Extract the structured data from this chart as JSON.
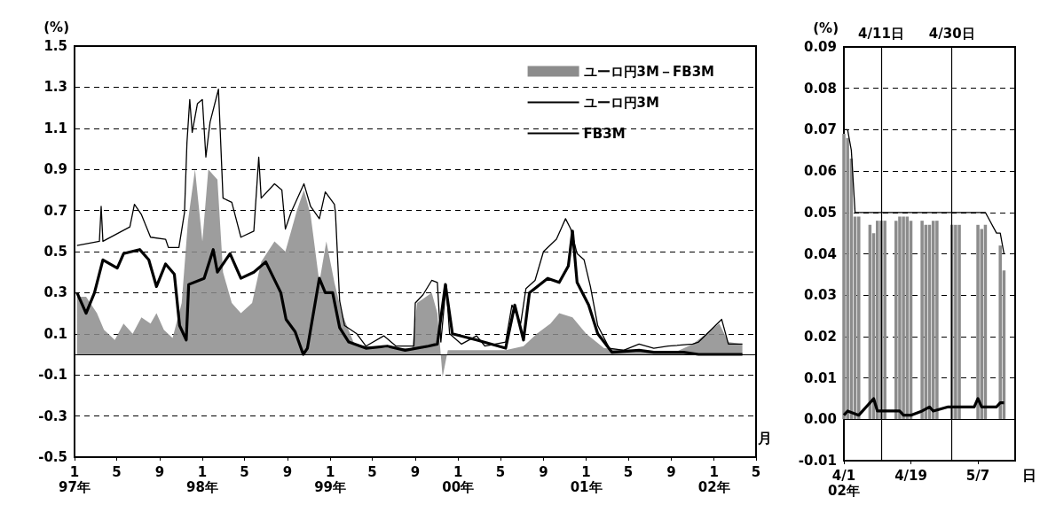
{
  "chart_data": [
    {
      "type": "line",
      "ylabel": "(%)",
      "annotations": [
        "月"
      ],
      "legend": "top right",
      "grid": "y",
      "xlim": [
        "1997-01-01",
        "2002-05-01"
      ],
      "xticks": [
        {
          "value": "1997-01-01",
          "label": "1\n97年"
        },
        {
          "value": "1997-05-01",
          "label": "5"
        },
        {
          "value": "1997-09-01",
          "label": "9"
        },
        {
          "value": "1998-01-01",
          "label": "1\n98年"
        },
        {
          "value": "1998-05-01",
          "label": "5"
        },
        {
          "value": "1998-09-01",
          "label": "9"
        },
        {
          "value": "1999-01-01",
          "label": "1\n99年"
        },
        {
          "value": "1999-05-01",
          "label": "5"
        },
        {
          "value": "1999-09-01",
          "label": "9"
        },
        {
          "value": "2000-01-01",
          "label": "1\n00年"
        },
        {
          "value": "2000-05-01",
          "label": "5"
        },
        {
          "value": "2000-09-01",
          "label": "9"
        },
        {
          "value": "2001-01-01",
          "label": "1\n01年"
        },
        {
          "value": "2001-05-01",
          "label": "5"
        },
        {
          "value": "2001-09-01",
          "label": "9"
        },
        {
          "value": "2002-01-01",
          "label": "1\n02年"
        },
        {
          "value": "2002-05-01",
          "label": "5"
        }
      ],
      "ylim": [
        -0.5,
        1.5
      ],
      "yticks": [
        -0.5,
        -0.3,
        -0.1,
        0.1,
        0.3,
        0.5,
        0.7,
        0.9,
        1.1,
        1.3,
        1.5
      ],
      "ref_lines": [
        {
          "axis": "y",
          "value": 0
        }
      ],
      "series": [
        {
          "name": "ユーロ円3M－FB3M",
          "type": "area",
          "color": "#8c8c8c",
          "x": [
            "1997-01-08",
            "1997-02-03",
            "1997-03-06",
            "1997-03-26",
            "1997-04-26",
            "1997-05-21",
            "1997-06-16",
            "1997-07-11",
            "1997-08-06",
            "1997-08-23",
            "1997-09-13",
            "1997-10-08",
            "1997-11-03",
            "1997-11-21",
            "1997-12-11",
            "1998-01-01",
            "1998-01-18",
            "1998-02-13",
            "1998-03-01",
            "1998-03-26",
            "1998-04-21",
            "1998-05-23",
            "1998-06-18",
            "1998-07-26",
            "1998-08-26",
            "1998-09-28",
            "1998-10-18",
            "1998-11-06",
            "1998-12-01",
            "1998-12-21",
            "1999-01-13",
            "1999-02-03",
            "1999-03-11",
            "1999-05-26",
            "1999-08-23",
            "1999-09-06",
            "1999-10-18",
            "1999-11-03",
            "1999-11-18",
            "1999-12-03",
            "2000-02-06",
            "2000-05-16",
            "2000-07-06",
            "2000-08-13",
            "2000-09-21",
            "2000-10-16",
            "2000-11-23",
            "2001-01-01",
            "2001-02-21",
            "2001-09-11",
            "2001-11-01",
            "2002-01-16",
            "2002-02-11",
            "2002-03-23"
          ],
          "values": [
            0.28,
            0.28,
            0.2,
            0.12,
            0.07,
            0.15,
            0.1,
            0.18,
            0.15,
            0.2,
            0.12,
            0.08,
            0.25,
            0.65,
            0.9,
            0.55,
            0.9,
            0.85,
            0.4,
            0.25,
            0.2,
            0.25,
            0.45,
            0.55,
            0.5,
            0.7,
            0.8,
            0.68,
            0.35,
            0.55,
            0.35,
            0.2,
            0.05,
            0.03,
            0.03,
            0.25,
            0.3,
            0.2,
            -0.11,
            0.02,
            0.02,
            0.02,
            0.04,
            0.1,
            0.15,
            0.2,
            0.18,
            0.1,
            0.03,
            0.01,
            0.05,
            0.15,
            0.06,
            0.05
          ]
        },
        {
          "name": "ユーロ円3M",
          "color": "#000000",
          "x": [
            "1997-01-08",
            "1997-03-13",
            "1997-03-18",
            "1997-03-23",
            "1997-06-08",
            "1997-06-21",
            "1997-07-11",
            "1997-08-06",
            "1997-09-18",
            "1997-09-26",
            "1997-10-26",
            "1997-11-11",
            "1997-11-18",
            "1997-11-26",
            "1997-12-03",
            "1997-12-18",
            "1998-01-01",
            "1998-01-11",
            "1998-01-23",
            "1998-02-16",
            "1998-03-01",
            "1998-03-26",
            "1998-04-21",
            "1998-05-28",
            "1998-06-11",
            "1998-06-18",
            "1998-07-26",
            "1998-08-16",
            "1998-08-26",
            "1998-09-11",
            "1998-10-18",
            "1998-11-06",
            "1998-12-01",
            "1998-12-18",
            "1999-01-13",
            "1999-01-16",
            "1999-01-28",
            "1999-02-11",
            "1999-03-18",
            "1999-04-13",
            "1999-06-03",
            "1999-07-08",
            "1999-08-28",
            "1999-09-01",
            "1999-09-23",
            "1999-10-18",
            "1999-11-03",
            "1999-11-13",
            "1999-11-28",
            "1999-12-08",
            "2000-01-11",
            "2000-02-23",
            "2000-03-18",
            "2000-05-16",
            "2000-06-03",
            "2000-06-28",
            "2000-07-13",
            "2000-08-08",
            "2000-09-01",
            "2000-10-08",
            "2000-11-03",
            "2000-11-18",
            "2000-12-06",
            "2000-12-26",
            "2001-01-13",
            "2001-02-03",
            "2001-03-08",
            "2001-04-18",
            "2001-06-01",
            "2001-07-13",
            "2001-08-23",
            "2001-11-01",
            "2001-11-18",
            "2002-01-23",
            "2002-02-11",
            "2002-03-23"
          ],
          "values": [
            0.53,
            0.55,
            0.72,
            0.55,
            0.62,
            0.73,
            0.68,
            0.57,
            0.56,
            0.52,
            0.52,
            0.69,
            1.03,
            1.24,
            1.08,
            1.22,
            1.24,
            0.96,
            1.13,
            1.29,
            0.76,
            0.74,
            0.57,
            0.6,
            0.96,
            0.76,
            0.83,
            0.8,
            0.61,
            0.69,
            0.83,
            0.72,
            0.66,
            0.79,
            0.73,
            0.69,
            0.26,
            0.14,
            0.1,
            0.04,
            0.09,
            0.04,
            0.04,
            0.25,
            0.29,
            0.36,
            0.35,
            0.06,
            0.34,
            0.1,
            0.05,
            0.09,
            0.04,
            0.06,
            0.24,
            0.15,
            0.32,
            0.36,
            0.5,
            0.56,
            0.66,
            0.61,
            0.49,
            0.46,
            0.33,
            0.14,
            0.03,
            0.02,
            0.05,
            0.03,
            0.04,
            0.05,
            0.06,
            0.17,
            0.05,
            0.05
          ]
        },
        {
          "name": "FB3M",
          "color": "#000000",
          "x": [
            "1997-01-08",
            "1997-02-03",
            "1997-02-27",
            "1997-03-23",
            "1997-05-03",
            "1997-05-21",
            "1997-07-06",
            "1997-08-01",
            "1997-08-23",
            "1997-09-18",
            "1997-10-13",
            "1997-10-28",
            "1997-11-16",
            "1997-11-23",
            "1998-01-06",
            "1998-02-01",
            "1998-02-13",
            "1998-03-21",
            "1998-04-21",
            "1998-05-28",
            "1998-07-01",
            "1998-08-13",
            "1998-08-28",
            "1998-09-23",
            "1998-10-16",
            "1998-10-28",
            "1998-12-01",
            "1998-12-18",
            "1999-01-08",
            "1999-01-28",
            "1999-02-23",
            "1999-04-13",
            "1999-06-13",
            "1999-08-03",
            "1999-10-08",
            "1999-11-03",
            "1999-11-26",
            "1999-12-16",
            "2000-02-23",
            "2000-05-16",
            "2000-06-11",
            "2000-07-06",
            "2000-07-23",
            "2000-09-13",
            "2000-10-16",
            "2000-11-11",
            "2000-11-23",
            "2000-12-06",
            "2001-01-08",
            "2001-02-03",
            "2001-03-16",
            "2001-06-01",
            "2001-07-13",
            "2001-10-06",
            "2001-11-18",
            "2002-03-23"
          ],
          "values": [
            0.3,
            0.2,
            0.3,
            0.46,
            0.42,
            0.49,
            0.51,
            0.46,
            0.33,
            0.44,
            0.39,
            0.14,
            0.07,
            0.34,
            0.37,
            0.51,
            0.4,
            0.49,
            0.37,
            0.4,
            0.45,
            0.3,
            0.17,
            0.11,
            0.0,
            0.03,
            0.37,
            0.3,
            0.3,
            0.13,
            0.06,
            0.03,
            0.04,
            0.02,
            0.04,
            0.05,
            0.34,
            0.1,
            0.07,
            0.03,
            0.24,
            0.07,
            0.3,
            0.37,
            0.35,
            0.43,
            0.6,
            0.35,
            0.24,
            0.1,
            0.01,
            0.02,
            0.01,
            0.01,
            0.0,
            0.0
          ]
        }
      ]
    },
    {
      "type": "bar",
      "ylabel": "(%)",
      "annotations": [
        "日"
      ],
      "grid": "y",
      "xlim": [
        "2002-04-01",
        "2002-05-17"
      ],
      "xticks": [
        {
          "value": "2002-04-01",
          "label": "4/1\n02年"
        },
        {
          "value": "2002-04-19",
          "label": "4/19"
        },
        {
          "value": "2002-05-07",
          "label": "5/7"
        }
      ],
      "ylim": [
        -0.01,
        0.09
      ],
      "yticks": [
        -0.01,
        {
          "value": 0,
          "label": "0.00"
        },
        0.01,
        0.02,
        0.03,
        0.04,
        0.05,
        0.06,
        0.07,
        0.08,
        0.09
      ],
      "ref_lines": [
        {
          "axis": "y",
          "value": 0
        },
        {
          "axis": "x",
          "value": "2002-04-11",
          "label": "4/11日"
        },
        {
          "axis": "x",
          "value": "2002-04-30",
          "label": "4/30日"
        }
      ],
      "series": [
        {
          "color": "#8c8c8c",
          "x": [
            "2002-04-01",
            "2002-04-02",
            "2002-04-03",
            "2002-04-04",
            "2002-04-05",
            "2002-04-08",
            "2002-04-09",
            "2002-04-10",
            "2002-04-11",
            "2002-04-12",
            "2002-04-15",
            "2002-04-16",
            "2002-04-17",
            "2002-04-18",
            "2002-04-19",
            "2002-04-22",
            "2002-04-23",
            "2002-04-24",
            "2002-04-25",
            "2002-04-26",
            "2002-04-30",
            "2002-05-01",
            "2002-05-02",
            "2002-05-07",
            "2002-05-08",
            "2002-05-09",
            "2002-05-13",
            "2002-05-14"
          ],
          "values": [
            0.069,
            0.068,
            0.063,
            0.049,
            0.049,
            0.047,
            0.045,
            0.048,
            0.048,
            0.048,
            0.048,
            0.049,
            0.049,
            0.049,
            0.048,
            0.048,
            0.047,
            0.047,
            0.048,
            0.048,
            0.047,
            0.047,
            0.047,
            0.047,
            0.046,
            0.047,
            0.042,
            0.036
          ]
        },
        {
          "type": "line",
          "color": "#000000",
          "x": [
            "2002-04-01",
            "2002-04-02",
            "2002-04-03",
            "2002-04-04",
            "2002-05-09",
            "2002-05-12",
            "2002-05-13",
            "2002-05-14"
          ],
          "values": [
            0.07,
            0.07,
            0.065,
            0.05,
            0.05,
            0.045,
            0.045,
            0.04
          ]
        },
        {
          "type": "line",
          "color": "#000000",
          "x": [
            "2002-04-01",
            "2002-04-02",
            "2002-04-05",
            "2002-04-09",
            "2002-04-10",
            "2002-04-16",
            "2002-04-17",
            "2002-04-19",
            "2002-04-22",
            "2002-04-24",
            "2002-04-25",
            "2002-04-29",
            "2002-05-06",
            "2002-05-07",
            "2002-05-08",
            "2002-05-12",
            "2002-05-13",
            "2002-05-14"
          ],
          "values": [
            0.001,
            0.002,
            0.001,
            0.005,
            0.002,
            0.002,
            0.001,
            0.001,
            0.002,
            0.003,
            0.002,
            0.003,
            0.003,
            0.005,
            0.003,
            0.003,
            0.004,
            0.004
          ]
        }
      ]
    }
  ]
}
